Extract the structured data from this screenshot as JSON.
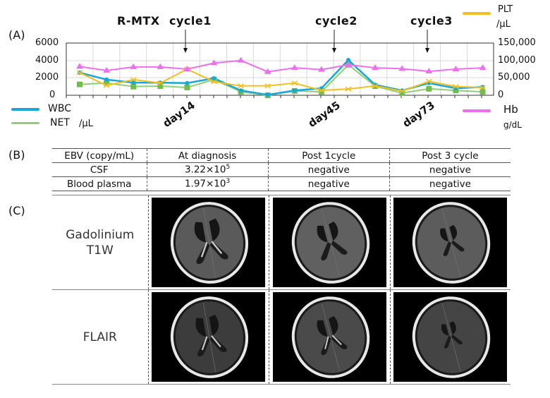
{
  "panels": {
    "a": "(A)",
    "b": "(B)",
    "c": "(C)"
  },
  "chart_data": {
    "type": "line",
    "title": "R-MTX",
    "annotations": [
      {
        "label": "cycle1",
        "x_index": 4
      },
      {
        "label": "cycle2",
        "x_index": 10
      },
      {
        "label": "cycle3",
        "x_index": 13
      }
    ],
    "x_tick_labels": [
      {
        "label": "day14",
        "x_index": 4
      },
      {
        "label": "day45",
        "x_index": 10
      },
      {
        "label": "day73",
        "x_index": 13
      }
    ],
    "x": [
      1,
      2,
      3,
      4,
      5,
      6,
      7,
      8,
      9,
      10,
      11,
      12,
      13,
      14,
      15,
      16
    ],
    "left_axis": {
      "label": "/μL",
      "ticks": [
        "0",
        "2000",
        "4000",
        "6000"
      ],
      "ylim": [
        0,
        6000
      ]
    },
    "right_axis": {
      "label": "/μL",
      "ticks": [
        "0",
        "50,000",
        "100,000",
        "150,000"
      ],
      "ylim": [
        0,
        150000
      ]
    },
    "grid": true,
    "series": [
      {
        "name": "WBC",
        "unit": "/μL",
        "axis": "left",
        "color": "#1aa7d8",
        "marker": "diamond",
        "values": [
          2600,
          1800,
          1450,
          1450,
          1400,
          1950,
          550,
          50,
          550,
          800,
          4050,
          1200,
          550,
          1400,
          800,
          950
        ]
      },
      {
        "name": "NET",
        "unit": "/μL",
        "axis": "left",
        "color": "#8fcf7a",
        "marker": "square",
        "values": [
          1250,
          1400,
          1000,
          1050,
          900,
          1800,
          400,
          0,
          500,
          400,
          3500,
          1050,
          250,
          750,
          550,
          400
        ]
      },
      {
        "name": "PLT",
        "unit": "/μL",
        "axis": "right",
        "color": "#f2c01e",
        "marker": "x",
        "values": [
          65000,
          28000,
          45000,
          35000,
          75000,
          39000,
          27000,
          27000,
          35000,
          14000,
          18000,
          27000,
          12000,
          40000,
          25000,
          22000
        ]
      },
      {
        "name": "Hb",
        "unit": "g/dL",
        "axis": "left-scaled",
        "color": "#ee6fee",
        "marker": "triangle",
        "values": [
          3300,
          2850,
          3250,
          3250,
          3000,
          3700,
          4000,
          2700,
          3150,
          2950,
          3500,
          3150,
          3050,
          2750,
          3000,
          3150
        ]
      }
    ],
    "legend": [
      {
        "name": "WBC",
        "position": "bottom-left"
      },
      {
        "name": "NET",
        "position": "bottom-left",
        "unit": "/μL"
      },
      {
        "name": "PLT",
        "position": "top-right",
        "unit": "/μL"
      },
      {
        "name": "Hb",
        "position": "bottom-right",
        "unit": "g/dL"
      }
    ]
  },
  "chart_text": {
    "title": "R-MTX",
    "cycle1": "cycle1",
    "cycle2": "cycle2",
    "cycle3": "cycle3",
    "day14": "day14",
    "day45": "day45",
    "day73": "day73",
    "y_left": [
      "6000",
      "4000",
      "2000",
      "0"
    ],
    "y_right": [
      "150,000",
      "100,000",
      "50,000",
      "0"
    ],
    "legend_wbc": "WBC",
    "legend_net": "NET",
    "legend_net_unit": "/μL",
    "legend_plt": "PLT",
    "legend_plt_unit": "/μL",
    "legend_hb": "Hb",
    "legend_hb_unit": "g/dL"
  },
  "ebv_table": {
    "headers": [
      "EBV (copy/mL)",
      "At diagnosis",
      "Post 1cycle",
      "Post 3 cycle"
    ],
    "rows": [
      {
        "label": "CSF",
        "diagnosis_base": "3.22×10",
        "diagnosis_exp": "5",
        "post1": "negative",
        "post3": "negative"
      },
      {
        "label": "Blood plasma",
        "diagnosis_base": "1.97×10",
        "diagnosis_exp": "3",
        "post1": "negative",
        "post3": "negative"
      }
    ]
  },
  "mri": {
    "rows": [
      {
        "label_line1": "Gadolinium",
        "label_line2": "T1W"
      },
      {
        "label_line1": "FLAIR",
        "label_line2": ""
      }
    ],
    "columns": [
      "At diagnosis",
      "Post 1cycle",
      "Post 3 cycle"
    ]
  }
}
